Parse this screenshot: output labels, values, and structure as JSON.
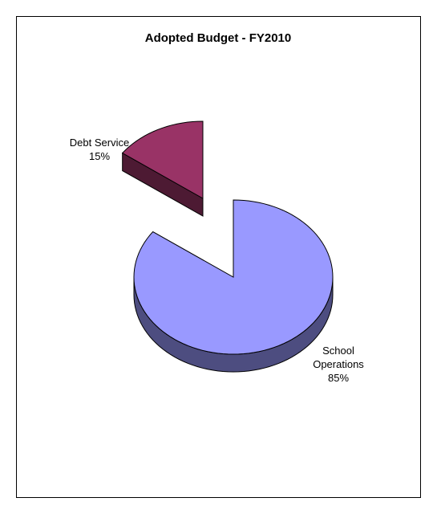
{
  "chart_data": {
    "type": "pie",
    "title": "Adopted Budget - FY2010",
    "slices": [
      {
        "label_lines": [
          "School",
          "Operations"
        ],
        "percent_label": "85%",
        "value": 85,
        "color": "#9999ff",
        "side_color": "#4d4d80"
      },
      {
        "label_lines": [
          "Debt Service"
        ],
        "percent_label": "15%",
        "value": 15,
        "color": "#993366",
        "side_color": "#4d1a33"
      }
    ],
    "legend": "none",
    "three_d": true
  }
}
